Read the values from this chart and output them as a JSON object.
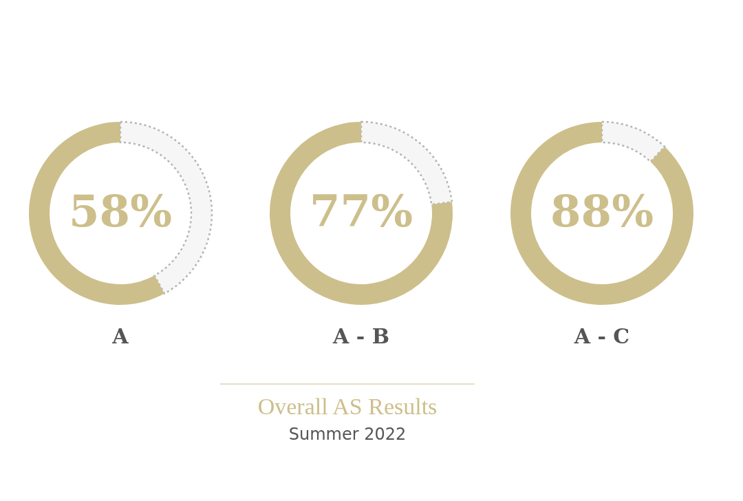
{
  "chart_data": [
    {
      "type": "donut",
      "xlabel": "A",
      "values": [
        58,
        42
      ],
      "colors": [
        "#cdbf8b",
        "#b4b4b4"
      ],
      "value_labels": [
        "58%",
        null
      ],
      "line_style": "dotted"
    },
    {
      "type": "donut",
      "xlabel": "A - B",
      "values": [
        77,
        23
      ],
      "colors": [
        "#cdbf8b",
        "#b4b4b4"
      ],
      "value_labels": [
        "77%",
        null
      ],
      "line_style": "dotted"
    },
    {
      "type": "donut",
      "xlabel": "A - C",
      "values": [
        88,
        12
      ],
      "colors": [
        "#cdbf8b",
        "#b4b4b4"
      ],
      "value_labels": [
        "88%",
        null
      ],
      "line_style": "dotted"
    },
    {
      "type": "other",
      "title": "Overall AS Results",
      "subtitle": "Summer 2022"
    }
  ]
}
